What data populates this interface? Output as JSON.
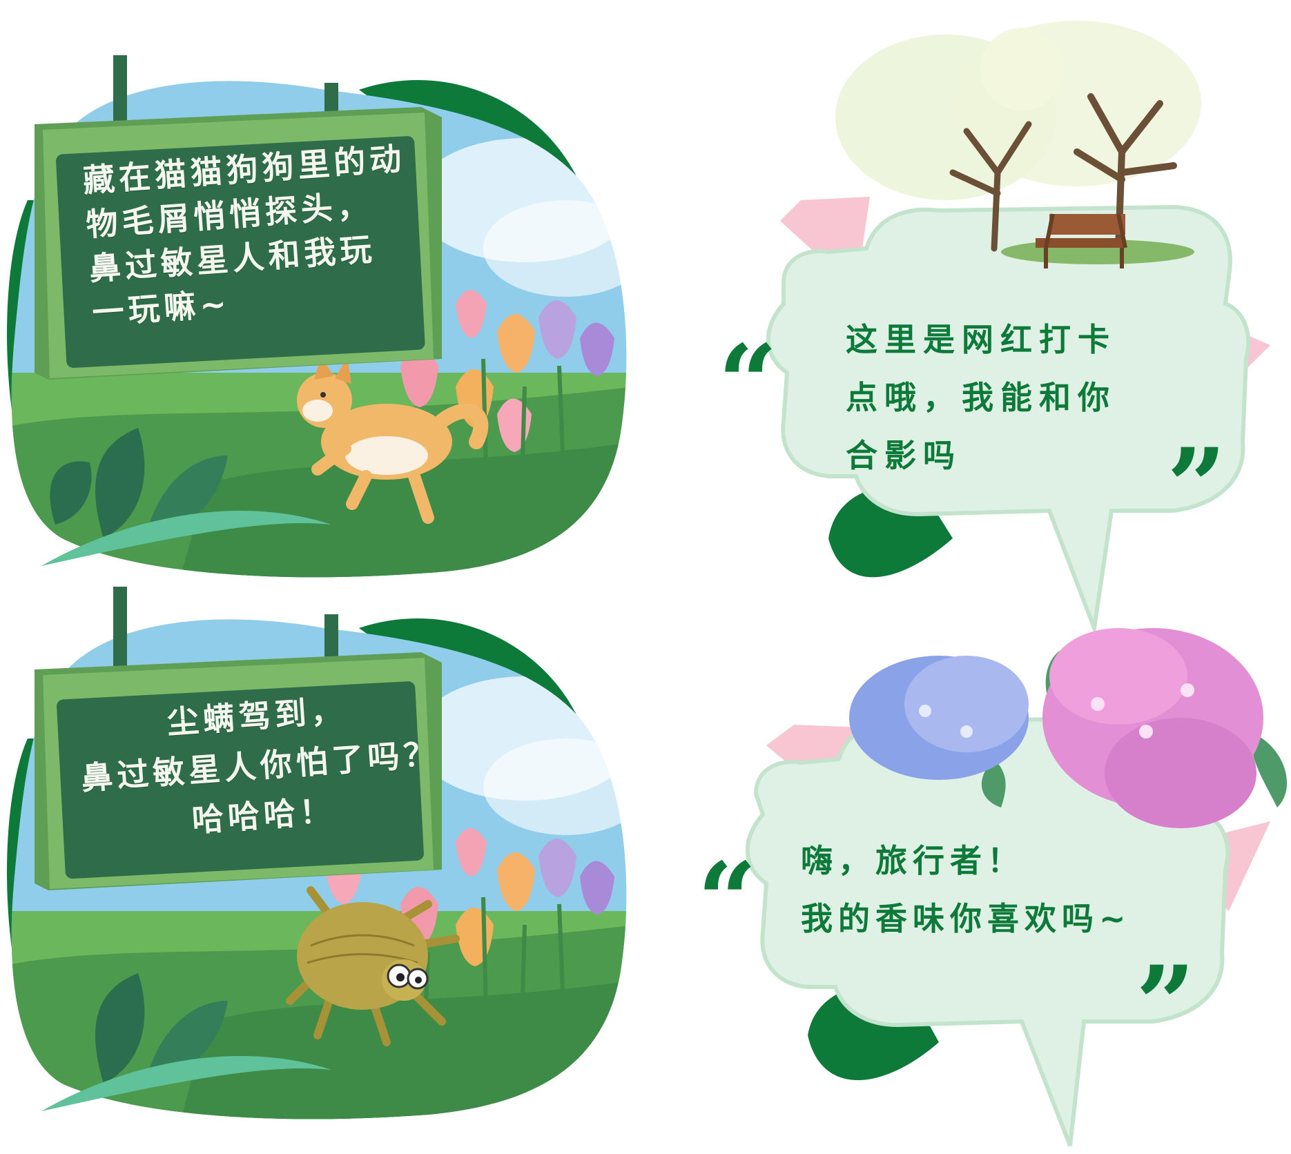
{
  "cards": [
    {
      "sign_lines": [
        "藏在猫猫狗狗里的动",
        "物毛屑悄悄探头，",
        "鼻过敏星人和我玩",
        "一玩嘛~"
      ],
      "character_icon": "shiba-dog-icon"
    },
    {
      "sign_lines": [
        "尘螨驾到，",
        "鼻过敏星人你怕了吗？",
        "哈哈哈！"
      ],
      "character_icon": "dust-mite-icon"
    }
  ],
  "bubbles": [
    {
      "lines": [
        "这里是网红打卡",
        "点哦，我能和你",
        "合影吗"
      ],
      "decoration_icon": "tree-bench-icon",
      "open_quote": "“",
      "close_quote": "”"
    },
    {
      "lines": [
        "嗨，旅行者！",
        "我的香味你喜欢吗~"
      ],
      "decoration_icon": "hydrangea-icon",
      "open_quote": "“",
      "close_quote": "”"
    }
  ],
  "colors": {
    "sign_board": "#2f6d4a",
    "sign_frame": "#6fae62",
    "dark_green": "#0e7a3a",
    "bubble_fill": "#dff1e4",
    "pink_accent": "#f7c6d2",
    "sky": "#7fc4e6"
  }
}
